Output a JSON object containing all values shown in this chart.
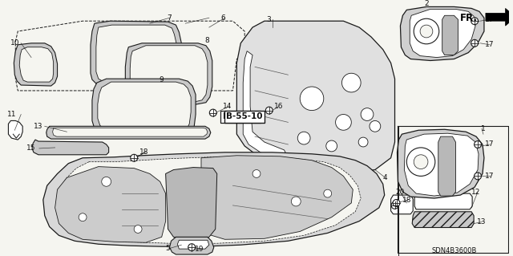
{
  "background_color": "#f5f5f0",
  "diagram_code": "SDN4B3600B",
  "reference_label": "B-55-10",
  "direction_label": "FR.",
  "fig_width": 6.4,
  "fig_height": 3.19,
  "dpi": 100,
  "line_color": "#1a1a1a",
  "label_color": "#111111",
  "label_fontsize": 6.5,
  "gray_fill": "#c8c8c8",
  "light_gray": "#e0e0e0"
}
